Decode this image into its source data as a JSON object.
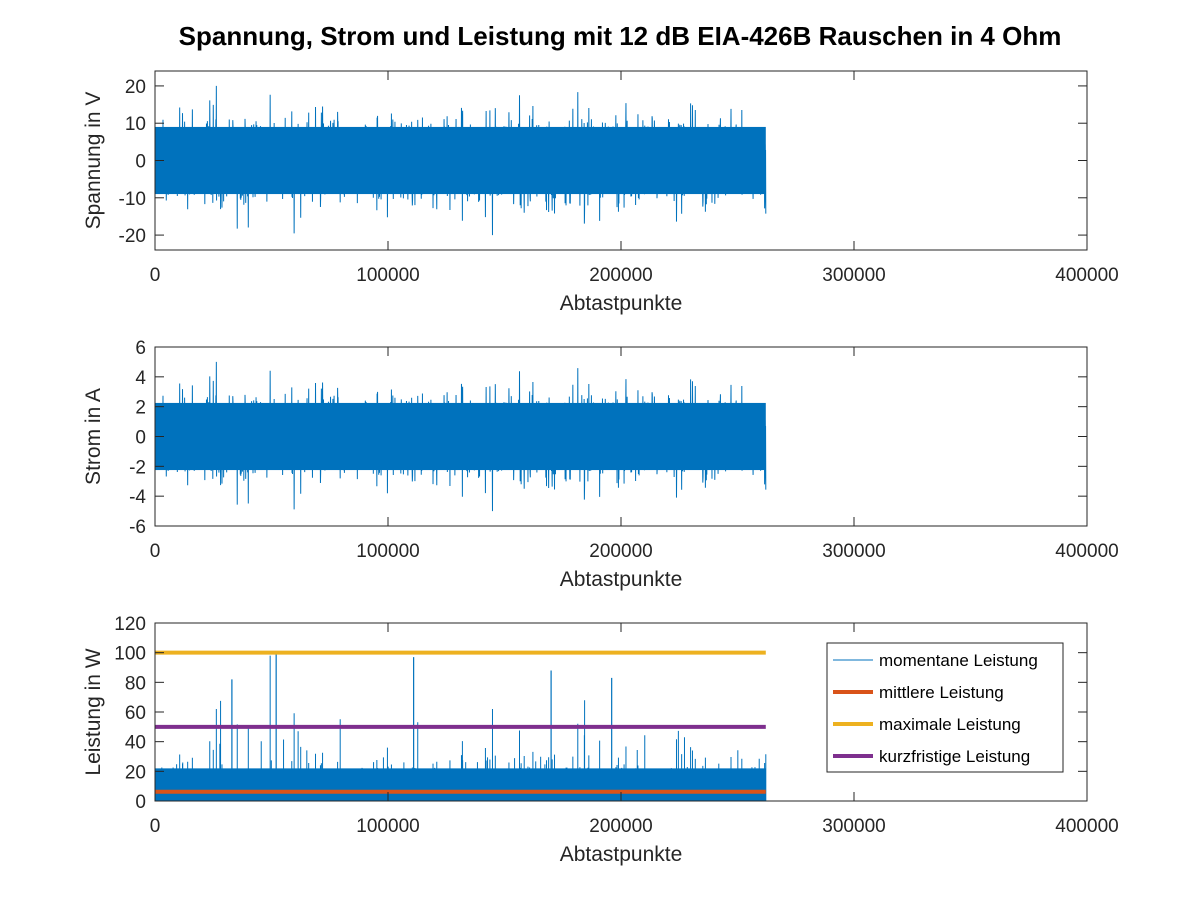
{
  "figure": {
    "title": "Spannung, Strom und Leistung mit 12 dB EIA-426B Rauschen in 4 Ohm"
  },
  "colors": {
    "signal": "#0072BD",
    "mittlere": "#D95319",
    "maximale": "#EDB120",
    "kurzfristige": "#7E2F8E",
    "axes": "#262626"
  },
  "chart_data": [
    {
      "type": "line",
      "xlabel": "Abtastpunkte",
      "ylabel": "Spannung in V",
      "xlim": [
        0,
        400000
      ],
      "ylim": [
        -24,
        24
      ],
      "xticks": [
        0,
        100000,
        200000,
        300000,
        400000
      ],
      "yticks": [
        -20,
        -10,
        0,
        10,
        20
      ],
      "grid": false,
      "series": [
        {
          "color": "#0072BD",
          "x_range": [
            0,
            262144
          ],
          "envelope_min": -19.5,
          "envelope_max": 20,
          "note_shape": "dense noise"
        }
      ]
    },
    {
      "type": "line",
      "xlabel": "Abtastpunkte",
      "ylabel": "Strom in A",
      "xlim": [
        0,
        400000
      ],
      "ylim": [
        -6,
        6
      ],
      "xticks": [
        0,
        100000,
        200000,
        300000,
        400000
      ],
      "yticks": [
        -6,
        -4,
        -2,
        0,
        2,
        4,
        6
      ],
      "grid": false,
      "series": [
        {
          "color": "#0072BD",
          "x_range": [
            0,
            262144
          ],
          "envelope_min": -4.8,
          "envelope_max": 5,
          "note_shape": "dense noise"
        }
      ]
    },
    {
      "type": "line",
      "xlabel": "Abtastpunkte",
      "ylabel": "Leistung in W",
      "xlim": [
        0,
        400000
      ],
      "ylim": [
        0,
        120
      ],
      "xticks": [
        0,
        100000,
        200000,
        300000,
        400000
      ],
      "yticks": [
        0,
        20,
        40,
        60,
        80,
        100,
        120
      ],
      "grid": false,
      "legend_position": "top-right",
      "series": [
        {
          "name": "momentane Leistung",
          "color": "#0072BD",
          "x_range": [
            0,
            262144
          ],
          "min": 0,
          "max": 100
        },
        {
          "name": "mittlere Leistung",
          "color": "#D95319",
          "x": [
            0,
            262144
          ],
          "y": [
            6.25,
            6.25
          ]
        },
        {
          "name": "maximale Leistung",
          "color": "#EDB120",
          "x": [
            0,
            262144
          ],
          "y": [
            100,
            100
          ]
        },
        {
          "name": "kurzfristige Leistung",
          "color": "#7E2F8E",
          "x": [
            0,
            262144
          ],
          "y": [
            50,
            50
          ]
        }
      ]
    }
  ]
}
